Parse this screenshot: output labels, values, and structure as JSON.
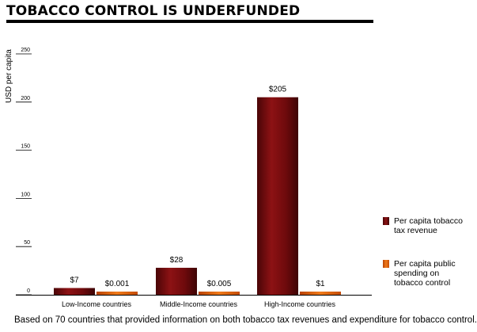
{
  "title": "TOBACCO CONTROL IS UNDERFUNDED",
  "footnote": "Based on 70 countries that provided information on both tobacco tax revenues and expenditure for tobacco control.",
  "colors": {
    "tax": "#7a0c0e",
    "spending": "#e0620a"
  },
  "chart_data": {
    "type": "bar",
    "ylabel": "USD per capita",
    "ylim": [
      0,
      250
    ],
    "yticks": [
      0,
      50,
      100,
      150,
      200,
      250
    ],
    "categories": [
      "Low-Income countries",
      "Middle-Income countries",
      "High-Income countries"
    ],
    "series": [
      {
        "name": "Per capita tobacco tax revenue",
        "values": [
          7,
          28,
          205
        ],
        "labels": [
          "$7",
          "$28",
          "$205"
        ]
      },
      {
        "name": "Per capita public spending on tobacco control",
        "values": [
          0.001,
          0.005,
          1
        ],
        "labels": [
          "$0.001",
          "$0.005",
          "$1"
        ]
      }
    ],
    "legend_position": "right"
  }
}
